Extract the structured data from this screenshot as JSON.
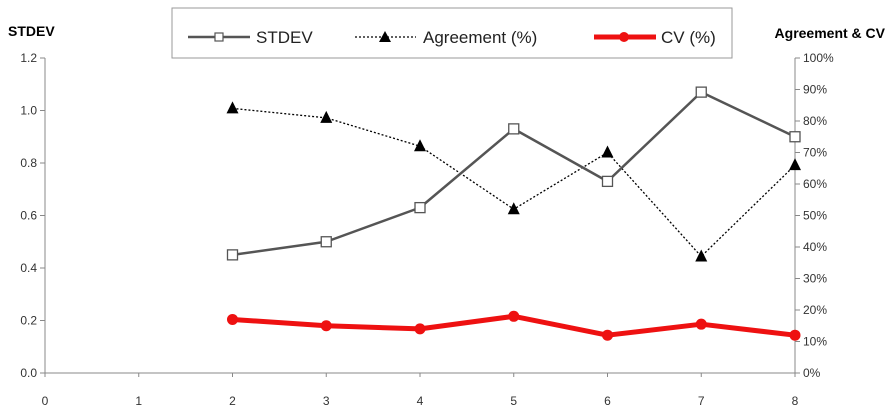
{
  "chart_data": {
    "type": "line",
    "title": "",
    "left_axis_title": "STDEV",
    "right_axis_title": "Agreement & CV",
    "x": [
      0,
      1,
      2,
      3,
      4,
      5,
      6,
      7,
      8
    ],
    "x_tick_labels": [
      "0",
      "1",
      "2",
      "3",
      "4",
      "5",
      "6",
      "7",
      "8"
    ],
    "left_axis": {
      "ylim": [
        0,
        1.2
      ],
      "ticks": [
        "0.0",
        "0.2",
        "0.4",
        "0.6",
        "0.8",
        "1.0",
        "1.2"
      ]
    },
    "right_axis": {
      "ylim": [
        0,
        100
      ],
      "ticks": [
        "0%",
        "10%",
        "20%",
        "30%",
        "40%",
        "50%",
        "60%",
        "70%",
        "80%",
        "90%",
        "100%"
      ]
    },
    "legend_position": "top",
    "series": [
      {
        "name": "STDEV",
        "axis": "left",
        "style": "solid",
        "marker": "square",
        "color": "#555555",
        "x": [
          2,
          3,
          4,
          5,
          6,
          7,
          8
        ],
        "values": [
          0.45,
          0.5,
          0.63,
          0.93,
          0.73,
          1.07,
          0.9
        ]
      },
      {
        "name": "Agreement (%)",
        "axis": "right",
        "style": "dotted",
        "marker": "triangle",
        "color": "#000000",
        "x": [
          2,
          3,
          4,
          5,
          6,
          7,
          8
        ],
        "values": [
          84,
          81,
          72,
          52,
          70,
          37,
          66
        ]
      },
      {
        "name": "CV (%)",
        "axis": "right",
        "style": "solid-thick",
        "marker": "circle",
        "color": "#ee1111",
        "x": [
          2,
          3,
          4,
          5,
          6,
          7,
          8
        ],
        "values": [
          17,
          15,
          14,
          18,
          12,
          15.5,
          12
        ]
      }
    ]
  }
}
